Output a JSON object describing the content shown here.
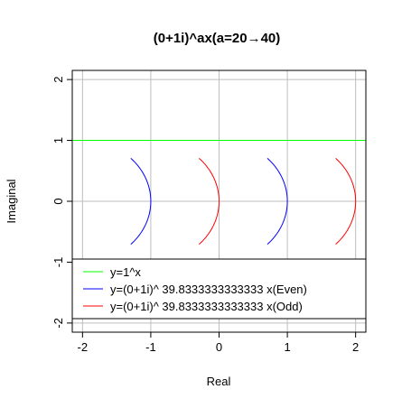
{
  "chart_data": {
    "type": "line",
    "title": "(0+1i)^ax(a=20→40)",
    "xlabel": "Real",
    "ylabel": "Imaginal",
    "xlim": [
      -2.15,
      2.15
    ],
    "ylim": [
      -2.15,
      2.15
    ],
    "x_ticks": [
      -2,
      -1,
      0,
      1,
      2
    ],
    "y_ticks": [
      -2,
      -1,
      0,
      1,
      2
    ],
    "x_tick_labels": [
      "-2",
      "-1",
      "0",
      "1",
      "2"
    ],
    "y_tick_labels": [
      "-2",
      "-1",
      "0",
      "1",
      "2"
    ],
    "grid": true,
    "legend_position": "bottom",
    "arc": {
      "center_x_offset": -1.0,
      "radius": 1.0,
      "angle_range_deg": [
        -45,
        45
      ]
    },
    "series": [
      {
        "name": "y=1^x",
        "color": "#00ff00",
        "kind": "hline",
        "y": 1
      },
      {
        "name": "y=(0+1i)^ 39.8333333333333 x(Even)",
        "color": "#0000ff",
        "kind": "arcs",
        "centers_x": [
          -2,
          0
        ]
      },
      {
        "name": "y=(0+1i)^ 39.8333333333333 x(Odd)",
        "color": "#ff0000",
        "kind": "arcs",
        "centers_x": [
          -1,
          1
        ]
      }
    ]
  }
}
